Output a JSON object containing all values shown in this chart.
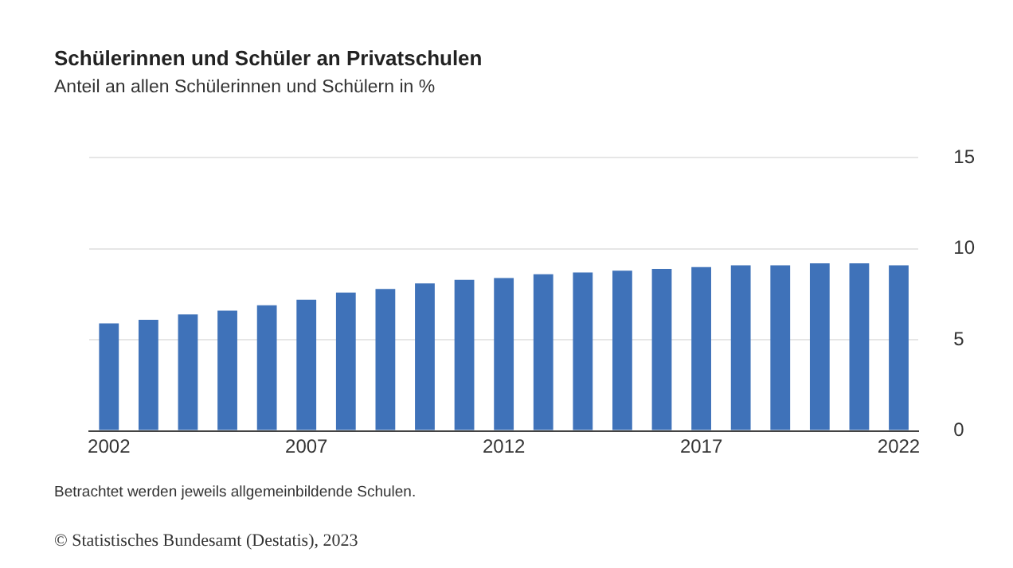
{
  "chart_data": {
    "type": "bar",
    "title": "Schülerinnen und Schüler an Privatschulen",
    "subtitle": "Anteil an allen Schülerinnen und Schülern in %",
    "categories": [
      "2002",
      null,
      null,
      null,
      null,
      "2007",
      null,
      null,
      null,
      null,
      "2012",
      null,
      null,
      null,
      null,
      "2017",
      null,
      null,
      null,
      null,
      "2022"
    ],
    "values": [
      5.9,
      6.1,
      6.4,
      6.6,
      6.9,
      7.2,
      7.6,
      7.8,
      8.1,
      8.3,
      8.4,
      8.6,
      8.7,
      8.8,
      8.9,
      9.0,
      9.1,
      9.1,
      9.2,
      9.2,
      9.1
    ],
    "color": "#3f72b9",
    "ylim": [
      0,
      15
    ],
    "yticks": [
      0,
      5,
      10,
      15
    ],
    "grid": "y",
    "legend": false,
    "annotations": [
      "Betrachtet werden jeweils allgemeinbildende Schulen.",
      "© Statistisches Bundesamt (Destatis), 2023"
    ]
  }
}
